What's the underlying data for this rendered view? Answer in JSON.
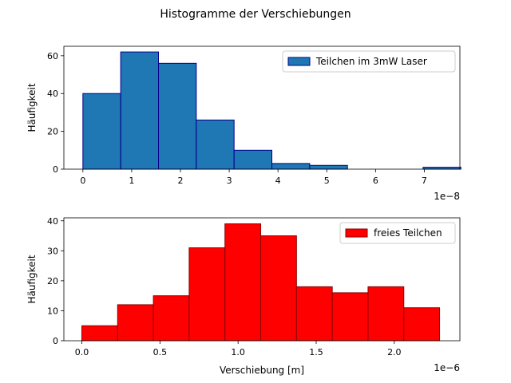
{
  "figure": {
    "suptitle": "Histogramme der Verschiebungen"
  },
  "chart_data": [
    {
      "type": "bar",
      "histogram": true,
      "ylabel": "Häufigkeit",
      "xlabel": "",
      "offset_label": "1e−8",
      "x_tick_values": [
        0,
        1,
        2,
        3,
        4,
        5,
        6,
        7
      ],
      "x_tick_labels": [
        "0",
        "1",
        "2",
        "3",
        "4",
        "5",
        "6",
        "7"
      ],
      "y_tick_values": [
        0,
        20,
        40,
        60
      ],
      "y_tick_labels": [
        "0",
        "20",
        "40",
        "60"
      ],
      "xlim": [
        -0.39,
        7.73
      ],
      "ylim": [
        0,
        65
      ],
      "bin_edges": [
        0,
        0.775,
        1.55,
        2.325,
        3.1,
        3.875,
        4.65,
        5.425,
        6.2,
        6.975,
        7.75
      ],
      "values": [
        40,
        62,
        56,
        26,
        10,
        3,
        2,
        0,
        0,
        1
      ],
      "fill_color": "#1f77b4",
      "edge_color": "#00008b",
      "legend": {
        "label": "Teilchen im 3mW Laser",
        "placement": "upper-right"
      }
    },
    {
      "type": "bar",
      "histogram": true,
      "ylabel": "Häufigkeit",
      "xlabel": "Verschiebung [m]",
      "offset_label": "1e−6",
      "x_tick_values": [
        0,
        0.5,
        1,
        1.5,
        2
      ],
      "x_tick_labels": [
        "0.0",
        "0.5",
        "1.0",
        "1.5",
        "2.0"
      ],
      "y_tick_values": [
        0,
        10,
        20,
        30,
        40
      ],
      "y_tick_labels": [
        "0",
        "10",
        "20",
        "30",
        "40"
      ],
      "xlim": [
        -0.115,
        2.42
      ],
      "ylim": [
        0,
        41
      ],
      "bin_edges": [
        0,
        0.229,
        0.458,
        0.687,
        0.916,
        1.145,
        1.374,
        1.603,
        1.832,
        2.061,
        2.29
      ],
      "values": [
        5,
        12,
        15,
        31,
        39,
        35,
        18,
        16,
        18,
        11
      ],
      "fill_color": "#ff0000",
      "edge_color": "#8b0000",
      "legend": {
        "label": "freies Teilchen",
        "placement": "upper-right"
      }
    }
  ]
}
